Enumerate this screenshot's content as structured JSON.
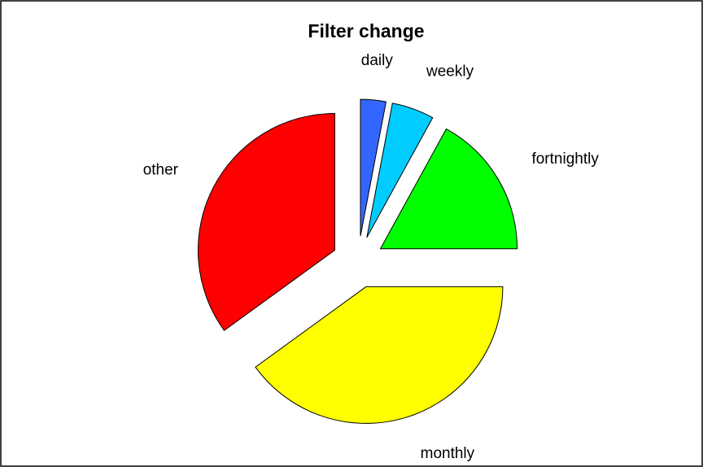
{
  "chart_data": {
    "type": "pie",
    "title": "Filter change",
    "categories": [
      "daily",
      "weekly",
      "fortnightly",
      "monthly",
      "other"
    ],
    "values": [
      3,
      5,
      17,
      40,
      35
    ],
    "colors": [
      "#3366ff",
      "#00ccff",
      "#00ff00",
      "#ffff00",
      "#ff0000"
    ]
  }
}
